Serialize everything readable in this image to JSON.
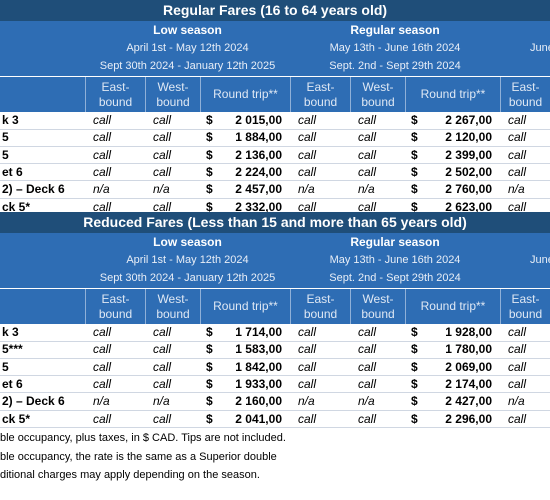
{
  "currency": "$",
  "sections": [
    {
      "title": "Regular Fares (16 to 64 years old)",
      "seasons": [
        {
          "name": "Low season",
          "dates": [
            "April 1st - May 12th 2024",
            "Sept 30th 2024 - January 12th 2025"
          ]
        },
        {
          "name": "Regular season",
          "dates": [
            "May 13th - June 16th 2024",
            "Sept. 2nd - Sept 29th 2024"
          ]
        },
        {
          "dates": [
            "June"
          ]
        }
      ],
      "columns": [
        "East-bound",
        "West-bound",
        "Round trip**",
        "East-bound",
        "West-bound",
        "Round trip**",
        "East-bound"
      ],
      "rows": [
        [
          "k 3",
          "call",
          "call",
          "2 015,00",
          "call",
          "call",
          "2 267,00",
          "call"
        ],
        [
          "5",
          "call",
          "call",
          "1 884,00",
          "call",
          "call",
          "2 120,00",
          "call"
        ],
        [
          "5",
          "call",
          "call",
          "2 136,00",
          "call",
          "call",
          "2 399,00",
          "call"
        ],
        [
          "et 6",
          "call",
          "call",
          "2 224,00",
          "call",
          "call",
          "2 502,00",
          "call"
        ],
        [
          "2) – Deck 6",
          "n/a",
          "n/a",
          "2 457,00",
          "n/a",
          "n/a",
          "2 760,00",
          "n/a"
        ],
        [
          "ck 5*",
          "call",
          "call",
          "2 332,00",
          "call",
          "call",
          "2 623,00",
          "call"
        ]
      ]
    },
    {
      "title": "Reduced Fares (Less than 15 and more than 65 years old)",
      "seasons": [
        {
          "name": "Low season",
          "dates": [
            "April 1st - May 12th 2024",
            "Sept 30th 2024 - January 12th 2025"
          ]
        },
        {
          "name": "Regular season",
          "dates": [
            "May 13th - June 16th 2024",
            "Sept. 2nd - Sept 29th 2024"
          ]
        },
        {
          "dates": [
            "June"
          ]
        }
      ],
      "columns": [
        "East-bound",
        "West-bound",
        "Round trip**",
        "East-bound",
        "West-bound",
        "Round trip**",
        "East-bound"
      ],
      "rows": [
        [
          "k 3",
          "call",
          "call",
          "1 714,00",
          "call",
          "call",
          "1 928,00",
          "call"
        ],
        [
          "5***",
          "call",
          "call",
          "1 583,00",
          "call",
          "call",
          "1 780,00",
          "call"
        ],
        [
          "5",
          "call",
          "call",
          "1 842,00",
          "call",
          "call",
          "2 069,00",
          "call"
        ],
        [
          "et 6",
          "call",
          "call",
          "1 933,00",
          "call",
          "call",
          "2 174,00",
          "call"
        ],
        [
          "2) – Deck 6",
          "n/a",
          "n/a",
          "2 160,00",
          "n/a",
          "n/a",
          "2 427,00",
          "n/a"
        ],
        [
          "ck 5*",
          "call",
          "call",
          "2 041,00",
          "call",
          "call",
          "2 296,00",
          "call"
        ]
      ]
    }
  ],
  "footnotes": [
    "ble occupancy, plus taxes, in $ CAD. Tips are not included.",
    "ble occupancy, the rate is the same as a Superior double",
    "ditional charges may apply depending on the season."
  ]
}
